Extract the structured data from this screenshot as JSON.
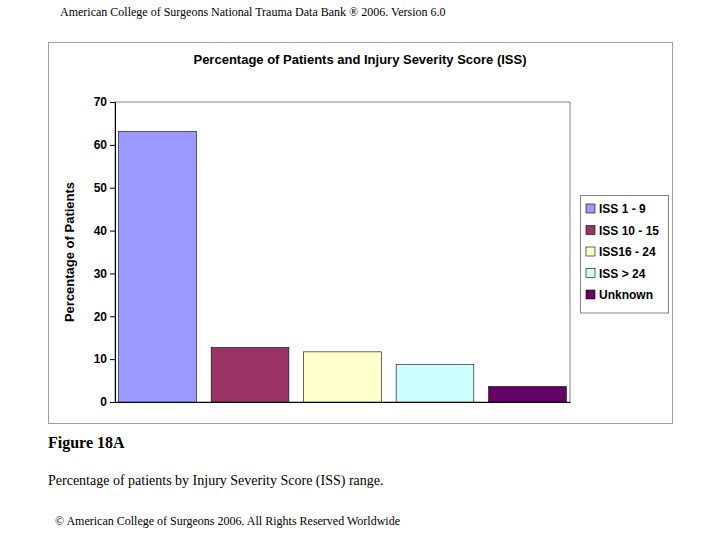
{
  "header": "American College of Surgeons National Trauma Data Bank ® 2006. Version 6.0",
  "figure": "Figure 18A",
  "caption": "Percentage of patients by Injury Severity Score (ISS) range.",
  "copyright": "© American College of Surgeons 2006. All Rights Reserved Worldwide",
  "chart_data": {
    "type": "bar",
    "title": "Percentage of Patients and Injury Severity Score (ISS)",
    "y_label": "Percentage of Patients",
    "categories": [
      "ISS 1 - 9",
      "ISS 10 - 15",
      "ISS16 - 24",
      "ISS > 24",
      "Unknown"
    ],
    "values": [
      63.1,
      12.7,
      11.7,
      8.8,
      3.6
    ],
    "colors": [
      "#9999ff",
      "#993366",
      "#ffffcc",
      "#ccffff",
      "#660066"
    ],
    "ylim": [
      0,
      70
    ],
    "yticks": [
      0,
      10,
      20,
      30,
      40,
      50,
      60,
      70
    ],
    "grid": false,
    "legend": "right",
    "tick_labels": "y"
  }
}
